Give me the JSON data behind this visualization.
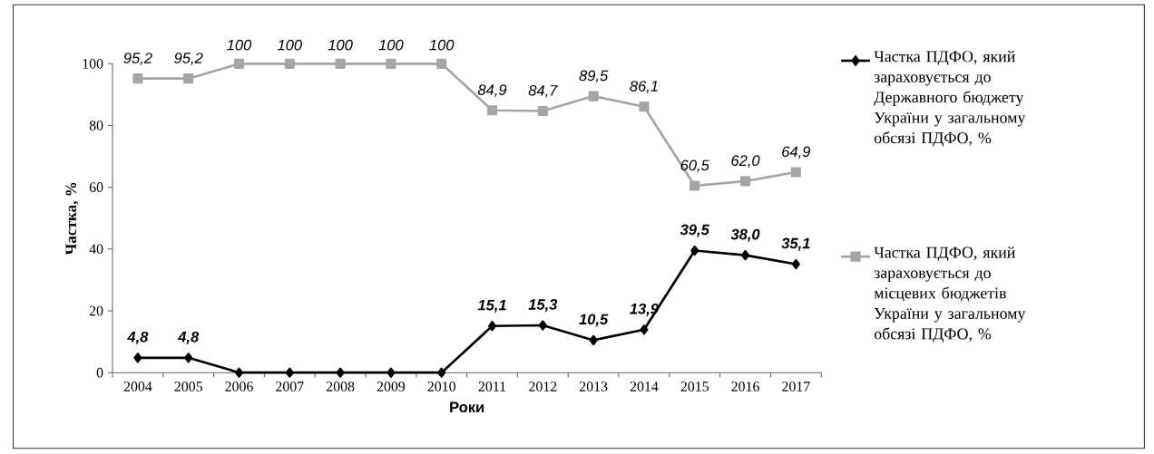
{
  "chart_data": {
    "type": "line",
    "xlabel": "Роки",
    "ylabel": "Частка, %",
    "categories": [
      "2004",
      "2005",
      "2006",
      "2007",
      "2008",
      "2009",
      "2010",
      "2011",
      "2012",
      "2013",
      "2014",
      "2015",
      "2016",
      "2017"
    ],
    "series": [
      {
        "name": "Частка ПДФО, який зараховується до Державного бюджету України у загальному обсязі ПДФО, %",
        "color": "#000000",
        "marker": "diamond",
        "values": [
          4.8,
          4.8,
          0,
          0,
          0,
          0,
          0,
          15.1,
          15.3,
          10.5,
          13.9,
          39.5,
          38.0,
          35.1
        ],
        "value_labels": [
          "4,8",
          "4,8",
          null,
          null,
          null,
          null,
          null,
          "15,1",
          "15,3",
          "10,5",
          "13,9",
          "39,5",
          "38,0",
          "35,1"
        ]
      },
      {
        "name": "Частка ПДФО, який зараховується до місцевих бюджетів України у загальному обсязі ПДФО, %",
        "color": "#a5a5a5",
        "marker": "square",
        "values": [
          95.2,
          95.2,
          100,
          100,
          100,
          100,
          100,
          84.9,
          84.7,
          89.5,
          86.1,
          60.5,
          62.0,
          64.9
        ],
        "value_labels": [
          "95,2",
          "95,2",
          "100",
          "100",
          "100",
          "100",
          "100",
          "84,9",
          "84,7",
          "89,5",
          "86,1",
          "60,5",
          "62,0",
          "64,9"
        ]
      }
    ],
    "ylim": [
      0,
      100
    ],
    "yticks": [
      0,
      20,
      40,
      60,
      80,
      100
    ],
    "legend": "right"
  }
}
